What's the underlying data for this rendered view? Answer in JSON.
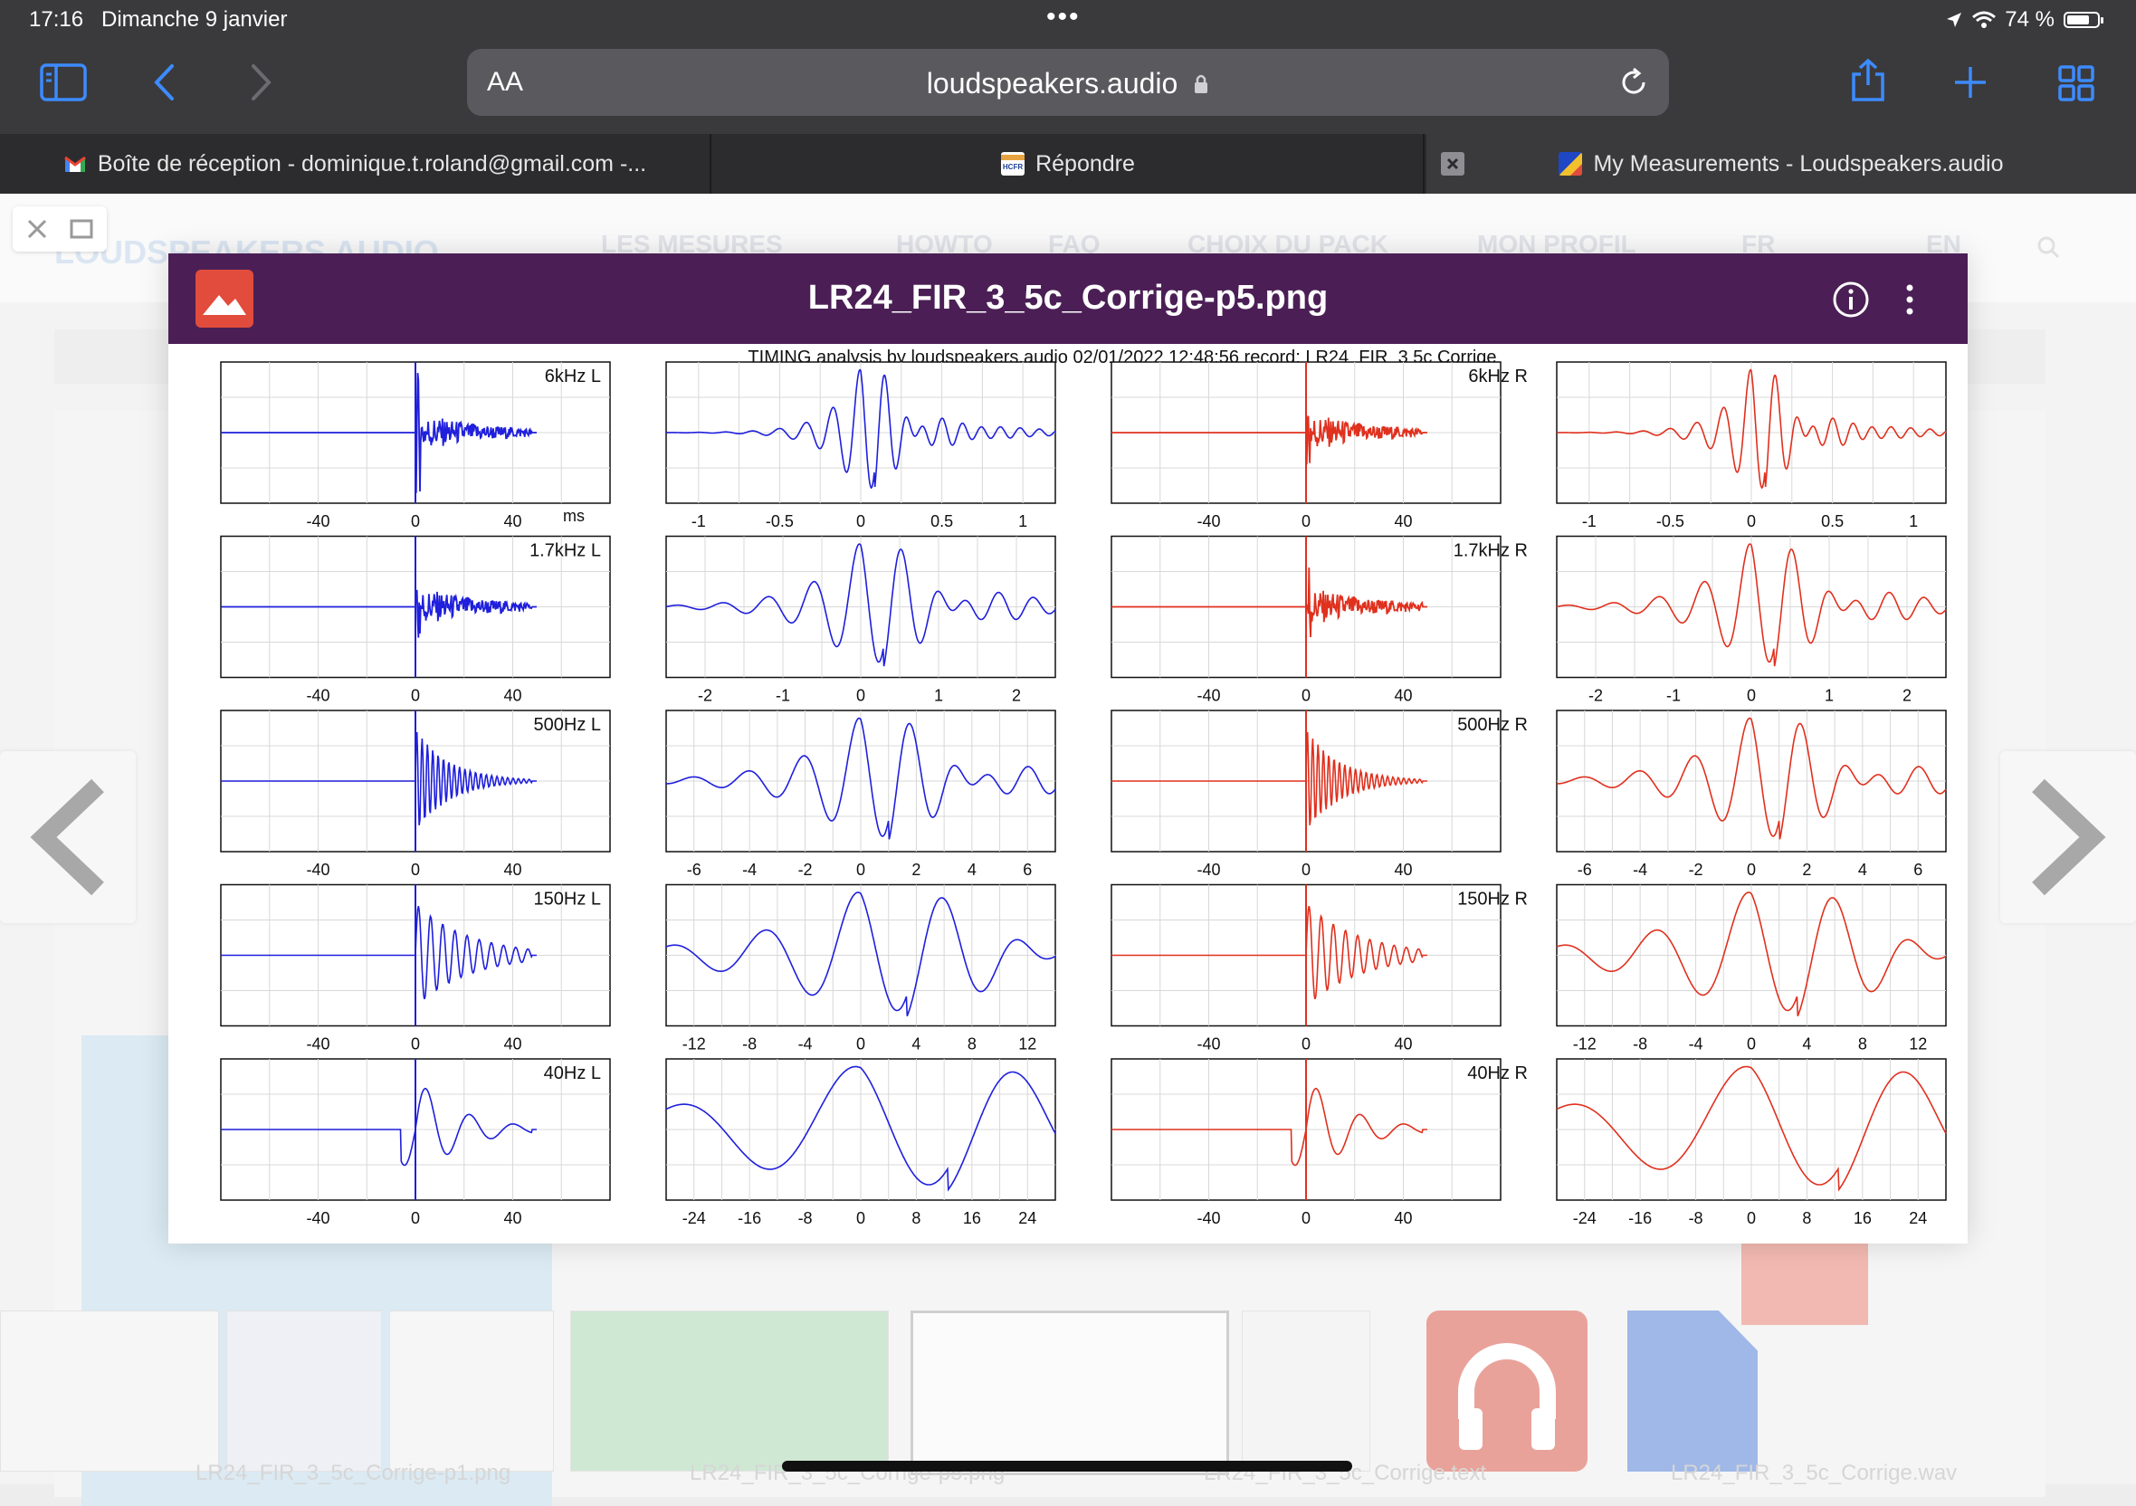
{
  "status_bar": {
    "time": "17:16",
    "date": "Dimanche 9 janvier",
    "battery": "74 %",
    "battery_level": 0.74
  },
  "safari": {
    "aa_label": "AA",
    "url": "loudspeakers.audio",
    "tabs": [
      {
        "label": "Boîte de réception - dominique.t.roland@gmail.com -...",
        "icon": "gmail-icon"
      },
      {
        "label": "Répondre",
        "icon": "hcfr-icon"
      },
      {
        "label": "My Measurements - Loudspeakers.audio",
        "icon": "loudspeakers-icon",
        "active": true
      }
    ]
  },
  "site": {
    "logo": "LOUDSPEAKERS AUDIO",
    "nav": [
      "LES MESURES",
      "HOWTO",
      "FAQ",
      "CHOIX DU PACK",
      "MON PROFIL",
      "FR",
      "EN"
    ],
    "thumb_captions": [
      "LR24_FIR_3_5c_Corrige-p1.png",
      "LR24_FIR_3_5c_Corrige-p5.png",
      "LR24_FIR_3_5c_Corrige.text",
      "LR24_FIR_3_5c_Corrige.wav"
    ]
  },
  "viewer": {
    "title": "LR24_FIR_3_5c_Corrige-p5.png",
    "colors": {
      "header": "#4b1f55",
      "icon": "#e24c3c",
      "left": "#1f1fdc",
      "right": "#e0301e"
    }
  },
  "chart_data": {
    "type": "line",
    "title": "TIMING analysis by loudspeakers.audio  02/01/2022 12:48:56     record: LR24_FIR_3  5c  Corrige",
    "ms_label": "ms",
    "rows": [
      {
        "left_label": "6kHz L",
        "right_label": "6kHz R",
        "wide_ticks": [
          -40,
          0,
          40
        ],
        "zoom_ticks": [
          "-1",
          "-0.5",
          "0",
          "0.5",
          "1"
        ],
        "zoom_range": [
          -1.2,
          1.2
        ],
        "freq_khz": 6
      },
      {
        "left_label": "1.7kHz L",
        "right_label": "1.7kHz R",
        "wide_ticks": [
          -40,
          0,
          40
        ],
        "zoom_ticks": [
          "-2",
          "-1",
          "0",
          "1",
          "2"
        ],
        "zoom_range": [
          -2.5,
          2.5
        ],
        "freq_khz": 1.7
      },
      {
        "left_label": "500Hz L",
        "right_label": "500Hz R",
        "wide_ticks": [
          -40,
          0,
          40
        ],
        "zoom_ticks": [
          "-6",
          "-4",
          "-2",
          "0",
          "2",
          "4",
          "6"
        ],
        "zoom_range": [
          -7,
          7
        ],
        "freq_khz": 0.5
      },
      {
        "left_label": "150Hz L",
        "right_label": "150Hz R",
        "wide_ticks": [
          -40,
          0,
          40
        ],
        "zoom_ticks": [
          "-12",
          "-8",
          "-4",
          "0",
          "4",
          "8",
          "12"
        ],
        "zoom_range": [
          -14,
          14
        ],
        "freq_khz": 0.15
      },
      {
        "left_label": "40Hz L",
        "right_label": "40Hz R",
        "wide_ticks": [
          -40,
          0,
          40
        ],
        "zoom_ticks": [
          "-24",
          "-16",
          "-8",
          "0",
          "8",
          "16",
          "24"
        ],
        "zoom_range": [
          -28,
          28
        ],
        "freq_khz": 0.04
      }
    ],
    "wide_range": [
      -80,
      80
    ],
    "grid": true
  }
}
